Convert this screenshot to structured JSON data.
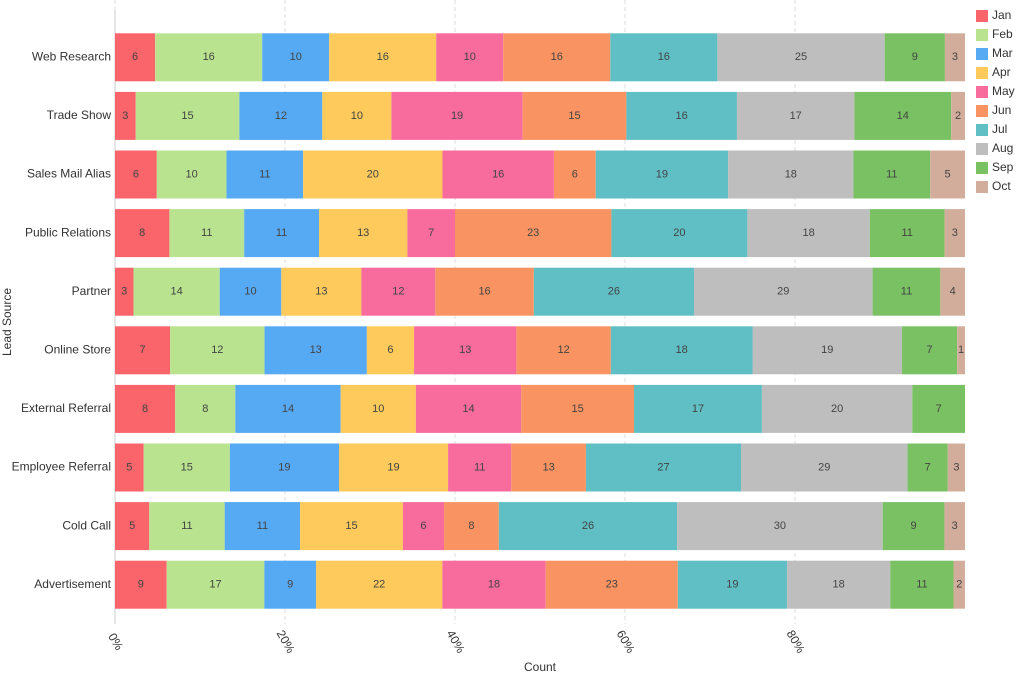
{
  "chart_data": {
    "type": "stacked_bar_percent",
    "orientation": "horizontal",
    "x_label": "Count",
    "y_label": "Lead Source",
    "categories": [
      "Web Research",
      "Trade Show",
      "Sales Mail Alias",
      "Public Relations",
      "Partner",
      "Online Store",
      "External Referral",
      "Employee Referral",
      "Cold Call",
      "Advertisement"
    ],
    "series": [
      {
        "name": "Jan",
        "color": "#f9656a",
        "values": [
          6,
          3,
          6,
          8,
          3,
          7,
          8,
          5,
          5,
          9
        ]
      },
      {
        "name": "Feb",
        "color": "#b9e38f",
        "values": [
          16,
          15,
          10,
          11,
          14,
          12,
          8,
          15,
          11,
          17
        ]
      },
      {
        "name": "Mar",
        "color": "#56a9f3",
        "values": [
          10,
          12,
          11,
          11,
          10,
          13,
          14,
          19,
          11,
          9
        ]
      },
      {
        "name": "Apr",
        "color": "#fdca5b",
        "values": [
          16,
          10,
          20,
          13,
          13,
          6,
          10,
          19,
          15,
          22
        ]
      },
      {
        "name": "May",
        "color": "#f76c9d",
        "values": [
          10,
          19,
          16,
          7,
          12,
          13,
          14,
          11,
          6,
          18
        ]
      },
      {
        "name": "Jun",
        "color": "#f99462",
        "values": [
          16,
          15,
          6,
          23,
          16,
          12,
          15,
          13,
          8,
          23
        ]
      },
      {
        "name": "Jul",
        "color": "#5fbfc5",
        "values": [
          16,
          16,
          19,
          20,
          26,
          18,
          17,
          27,
          26,
          19
        ]
      },
      {
        "name": "Aug",
        "color": "#bebebe",
        "values": [
          25,
          17,
          18,
          18,
          29,
          19,
          20,
          29,
          30,
          18
        ]
      },
      {
        "name": "Sep",
        "color": "#79c162",
        "values": [
          9,
          14,
          11,
          11,
          11,
          7,
          7,
          7,
          9,
          11
        ]
      },
      {
        "name": "Oct",
        "color": "#d3ad9b",
        "values": [
          3,
          2,
          5,
          3,
          4,
          1,
          null,
          3,
          3,
          2
        ]
      }
    ],
    "xlim": [
      0,
      100
    ],
    "xticks": [
      {
        "value": 0,
        "label": "0%"
      },
      {
        "value": 20,
        "label": "20%"
      },
      {
        "value": 40,
        "label": "40%"
      },
      {
        "value": 60,
        "label": "60%"
      },
      {
        "value": 80,
        "label": "80%"
      }
    ],
    "grid": true,
    "legend": "top-right"
  }
}
